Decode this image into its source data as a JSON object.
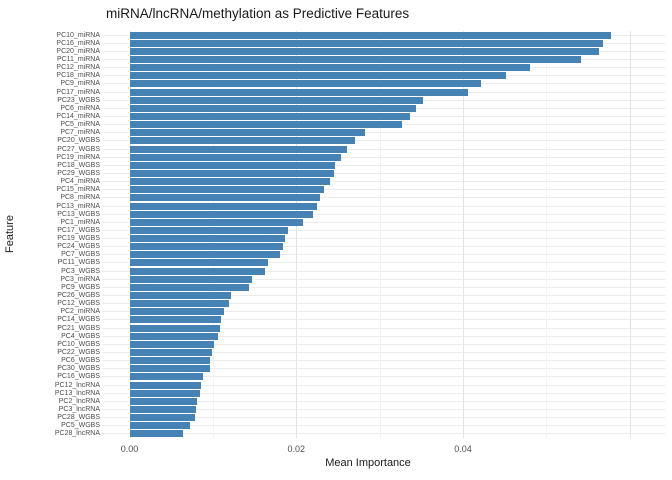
{
  "title": "miRNA/lncRNA/methylation as Predictive Features",
  "chart_data": {
    "type": "bar",
    "orientation": "horizontal",
    "title": "miRNA/lncRNA/methylation as Predictive Features",
    "xlabel": "Mean Importance",
    "ylabel": "Feature",
    "bar_color": "#4682B4",
    "grid": "on",
    "xlim": [
      0,
      0.0643
    ],
    "x_ticks": [
      {
        "value": 0.0,
        "label": "0.00"
      },
      {
        "value": 0.02,
        "label": "0.02"
      },
      {
        "value": 0.04,
        "label": "0.04"
      }
    ],
    "major_gridlines": [
      0.0,
      0.02,
      0.04,
      0.06
    ],
    "minor_gridlines": [
      0.01,
      0.03,
      0.05
    ],
    "categories": [
      "PC10_miRNA",
      "PC16_miRNA",
      "PC20_miRNA",
      "PC11_miRNA",
      "PC12_miRNA",
      "PC18_miRNA",
      "PC9_miRNA",
      "PC17_miRNA",
      "PC23_WGBS",
      "PC6_miRNA",
      "PC14_miRNA",
      "PC5_miRNA",
      "PC7_miRNA",
      "PC20_WGBS",
      "PC27_WGBS",
      "PC19_miRNA",
      "PC18_WGBS",
      "PC29_WGBS",
      "PC4_miRNA",
      "PC15_miRNA",
      "PC8_miRNA",
      "PC13_miRNA",
      "PC13_WGBS",
      "PC1_miRNA",
      "PC17_WGBS",
      "PC19_WGBS",
      "PC24_WGBS",
      "PC7_WGBS",
      "PC11_WGBS",
      "PC3_WGBS",
      "PC3_miRNA",
      "PC9_WGBS",
      "PC26_WGBS",
      "PC12_WGBS",
      "PC2_miRNA",
      "PC14_WGBS",
      "PC21_WGBS",
      "PC4_WGBS",
      "PC10_WGBS",
      "PC22_WGBS",
      "PC6_WGBS",
      "PC30_WGBS",
      "PC16_WGBS",
      "PC12_lncRNA",
      "PC13_lncRNA",
      "PC2_lncRNA",
      "PC3_lncRNA",
      "PC28_WGBS",
      "PC5_WGBS",
      "PC28_lncRNA"
    ],
    "values": [
      0.0578,
      0.0568,
      0.0563,
      0.0542,
      0.048,
      0.0452,
      0.0422,
      0.0406,
      0.0352,
      0.0344,
      0.0337,
      0.0327,
      0.0283,
      0.027,
      0.0261,
      0.0254,
      0.0247,
      0.0245,
      0.024,
      0.0233,
      0.0229,
      0.0225,
      0.022,
      0.0208,
      0.019,
      0.0187,
      0.0184,
      0.0181,
      0.0166,
      0.0163,
      0.0147,
      0.0143,
      0.0122,
      0.0119,
      0.0113,
      0.011,
      0.0108,
      0.0106,
      0.0101,
      0.0099,
      0.0097,
      0.0096,
      0.0088,
      0.0086,
      0.0085,
      0.0081,
      0.008,
      0.0079,
      0.0073,
      0.0064
    ]
  }
}
